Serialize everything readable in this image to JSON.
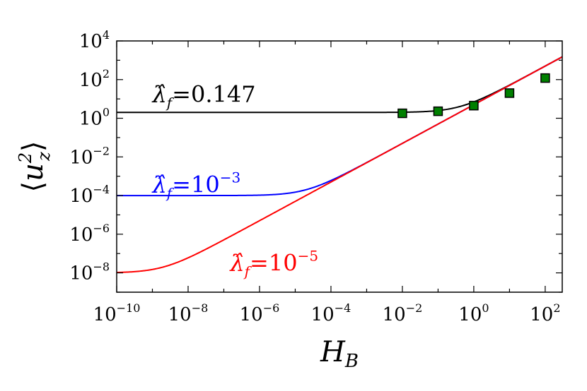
{
  "chart_data": {
    "type": "line",
    "xlabel": "H_B",
    "ylabel": "⟨u_z²⟩",
    "xscale": "log",
    "yscale": "log",
    "xlim": [
      1e-10,
      300
    ],
    "ylim": [
      1e-09,
      10000.0
    ],
    "grid": false,
    "legend": "none",
    "x_ticks": [
      {
        "base": "10",
        "exp": "−10",
        "value": 1e-10
      },
      {
        "base": "10",
        "exp": "−8",
        "value": 1e-08
      },
      {
        "base": "10",
        "exp": "−6",
        "value": 1e-06
      },
      {
        "base": "10",
        "exp": "−4",
        "value": 0.0001
      },
      {
        "base": "10",
        "exp": "−2",
        "value": 0.01
      },
      {
        "base": "10",
        "exp": "0",
        "value": 1
      },
      {
        "base": "10",
        "exp": "2",
        "value": 100
      }
    ],
    "y_ticks": [
      {
        "base": "10",
        "exp": "−8",
        "value": 1e-08
      },
      {
        "base": "10",
        "exp": "−6",
        "value": 1e-06
      },
      {
        "base": "10",
        "exp": "−4",
        "value": 0.0001
      },
      {
        "base": "10",
        "exp": "−2",
        "value": 0.01
      },
      {
        "base": "10",
        "exp": "0",
        "value": 1
      },
      {
        "base": "10",
        "exp": "2",
        "value": 100
      },
      {
        "base": "10",
        "exp": "4",
        "value": 10000
      }
    ],
    "series": [
      {
        "label_prefix": "λ̂",
        "label_sub": "f",
        "label_eq": "=0.147",
        "label_exp": "",
        "color": "#000000",
        "floor": 2.0,
        "label_position": {
          "x": 1e-09,
          "y": 7
        }
      },
      {
        "label_prefix": "λ̂",
        "label_sub": "f",
        "label_eq": "=10",
        "label_exp": "−3",
        "color": "#0000ff",
        "floor": 0.0001,
        "label_position": {
          "x": 1e-09,
          "y": 0.00015
        }
      },
      {
        "label_prefix": "λ̂",
        "label_sub": "f",
        "label_eq": "=10",
        "label_exp": "−5",
        "color": "#ff0000",
        "floor": 1e-08,
        "label_position": {
          "x": 1.5e-07,
          "y": 1.3e-08
        }
      }
    ],
    "markers": {
      "shape": "square",
      "fill": "#008000",
      "stroke": "#000000",
      "points": [
        {
          "x": 0.01,
          "y": 1.8
        },
        {
          "x": 0.1,
          "y": 2.3
        },
        {
          "x": 1,
          "y": 4.5
        },
        {
          "x": 10,
          "y": 20
        },
        {
          "x": 100,
          "y": 120
        }
      ]
    }
  }
}
